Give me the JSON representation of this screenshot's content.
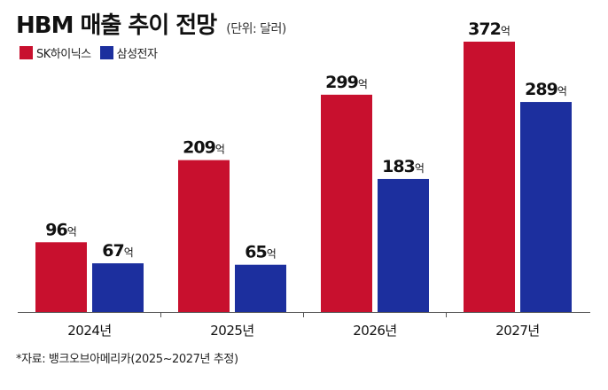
{
  "header": {
    "title": "HBM 매출 추이 전망",
    "unit": "(단위: 달러)"
  },
  "footer": {
    "source": "*자료: 뱅크오브아메리카(2025~2027년 추정)"
  },
  "chart_data": {
    "type": "bar",
    "title": "HBM 매출 추이 전망",
    "unit_note": "(단위: 달러)",
    "value_suffix": "억",
    "categories": [
      "2024년",
      "2025년",
      "2026년",
      "2027년"
    ],
    "series": [
      {
        "name": "SK하이닉스",
        "color": "#c8102e",
        "values": [
          96,
          209,
          299,
          372
        ]
      },
      {
        "name": "삼성전자",
        "color": "#1c2f9e",
        "values": [
          67,
          65,
          183,
          289
        ]
      }
    ],
    "xlabel": "",
    "ylabel": "",
    "ylim": [
      0,
      372
    ],
    "grid": false,
    "legend": "top-left"
  }
}
